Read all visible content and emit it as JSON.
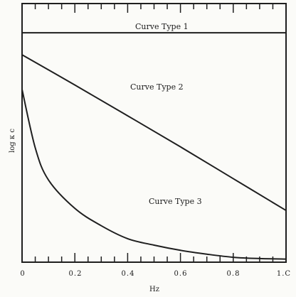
{
  "chart_data": {
    "type": "line",
    "title": "",
    "xlabel": "Hz",
    "ylabel": "log κ c",
    "xlim": [
      0,
      1.0
    ],
    "xticks": [
      0,
      0.2,
      0.4,
      0.6,
      0.8,
      1.0
    ],
    "xtick_labels": [
      "0",
      "0.2",
      "0.4",
      "0.6",
      "0.8",
      "1.C"
    ],
    "grid": false,
    "series": [
      {
        "name": "Curve Type 1",
        "x": [
          0,
          1.0
        ],
        "y": [
          0.887,
          0.887
        ]
      },
      {
        "name": "Curve Type 2",
        "x": [
          0,
          0.2,
          0.4,
          0.6,
          0.8,
          1.0
        ],
        "y": [
          0.802,
          0.685,
          0.566,
          0.446,
          0.323,
          0.2
        ]
      },
      {
        "name": "Curve Type 3",
        "x": [
          0,
          0.05,
          0.1,
          0.2,
          0.3,
          0.4,
          0.5,
          0.6,
          0.7,
          0.8,
          0.9,
          1.0
        ],
        "y": [
          0.668,
          0.442,
          0.318,
          0.208,
          0.141,
          0.091,
          0.066,
          0.046,
          0.031,
          0.019,
          0.014,
          0.012
        ]
      }
    ]
  }
}
